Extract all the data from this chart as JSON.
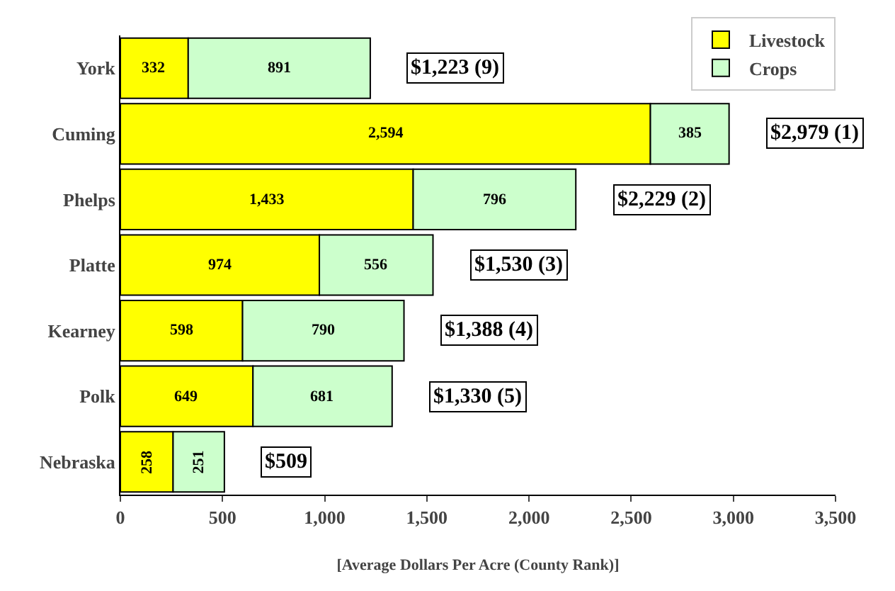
{
  "chart_data": {
    "type": "bar",
    "orientation": "horizontal",
    "stacked": true,
    "xlabel": "[Average Dollars Per Acre (County Rank)]",
    "categories": [
      "York",
      "Cuming",
      "Phelps",
      "Platte",
      "Kearney",
      "Polk",
      "Nebraska"
    ],
    "series": [
      {
        "name": "Livestock",
        "color": "#ffff00",
        "values": [
          332,
          2594,
          1433,
          974,
          598,
          649,
          258
        ],
        "value_labels": [
          "332",
          "2,594",
          "1,433",
          "974",
          "598",
          "649",
          "258"
        ]
      },
      {
        "name": "Crops",
        "color": "#ccffcc",
        "values": [
          891,
          385,
          796,
          556,
          790,
          681,
          251
        ],
        "value_labels": [
          "891",
          "385",
          "796",
          "556",
          "790",
          "681",
          "251"
        ]
      }
    ],
    "totals": [
      "$1,223 (9)",
      "$2,979 (1)",
      "$2,229 (2)",
      "$1,530 (3)",
      "$1,388 (4)",
      "$1,330 (5)",
      "$509"
    ],
    "xlim": [
      0,
      3500
    ],
    "xticks": [
      {
        "value": 0,
        "label": "0"
      },
      {
        "value": 500,
        "label": "500"
      },
      {
        "value": 1000,
        "label": "1,000"
      },
      {
        "value": 1500,
        "label": "1,500"
      },
      {
        "value": 2000,
        "label": "2,000"
      },
      {
        "value": 2500,
        "label": "2,500"
      },
      {
        "value": 3000,
        "label": "3,000"
      },
      {
        "value": 3500,
        "label": "3,500"
      }
    ],
    "grid": false,
    "legend": "top right"
  }
}
